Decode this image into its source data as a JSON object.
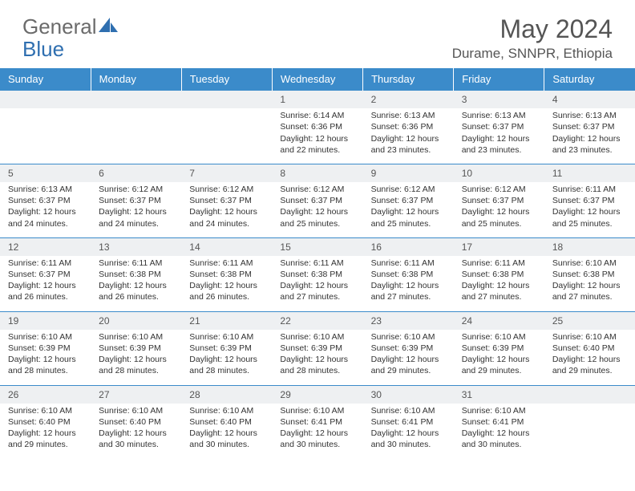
{
  "brand": {
    "part1": "General",
    "part2": "Blue"
  },
  "colors": {
    "header_bg": "#3b8bca",
    "header_text": "#ffffff",
    "daynum_bg": "#eef0f2",
    "border": "#3b8bca",
    "text": "#333333",
    "muted": "#555555",
    "logo_gray": "#6b6b6b",
    "logo_blue": "#2f6fb0"
  },
  "title": "May 2024",
  "location": "Durame, SNNPR, Ethiopia",
  "weekdays": [
    "Sunday",
    "Monday",
    "Tuesday",
    "Wednesday",
    "Thursday",
    "Friday",
    "Saturday"
  ],
  "weeks": [
    [
      {
        "n": "",
        "s": ""
      },
      {
        "n": "",
        "s": ""
      },
      {
        "n": "",
        "s": ""
      },
      {
        "n": "1",
        "s": "Sunrise: 6:14 AM\nSunset: 6:36 PM\nDaylight: 12 hours and 22 minutes."
      },
      {
        "n": "2",
        "s": "Sunrise: 6:13 AM\nSunset: 6:36 PM\nDaylight: 12 hours and 23 minutes."
      },
      {
        "n": "3",
        "s": "Sunrise: 6:13 AM\nSunset: 6:37 PM\nDaylight: 12 hours and 23 minutes."
      },
      {
        "n": "4",
        "s": "Sunrise: 6:13 AM\nSunset: 6:37 PM\nDaylight: 12 hours and 23 minutes."
      }
    ],
    [
      {
        "n": "5",
        "s": "Sunrise: 6:13 AM\nSunset: 6:37 PM\nDaylight: 12 hours and 24 minutes."
      },
      {
        "n": "6",
        "s": "Sunrise: 6:12 AM\nSunset: 6:37 PM\nDaylight: 12 hours and 24 minutes."
      },
      {
        "n": "7",
        "s": "Sunrise: 6:12 AM\nSunset: 6:37 PM\nDaylight: 12 hours and 24 minutes."
      },
      {
        "n": "8",
        "s": "Sunrise: 6:12 AM\nSunset: 6:37 PM\nDaylight: 12 hours and 25 minutes."
      },
      {
        "n": "9",
        "s": "Sunrise: 6:12 AM\nSunset: 6:37 PM\nDaylight: 12 hours and 25 minutes."
      },
      {
        "n": "10",
        "s": "Sunrise: 6:12 AM\nSunset: 6:37 PM\nDaylight: 12 hours and 25 minutes."
      },
      {
        "n": "11",
        "s": "Sunrise: 6:11 AM\nSunset: 6:37 PM\nDaylight: 12 hours and 25 minutes."
      }
    ],
    [
      {
        "n": "12",
        "s": "Sunrise: 6:11 AM\nSunset: 6:37 PM\nDaylight: 12 hours and 26 minutes."
      },
      {
        "n": "13",
        "s": "Sunrise: 6:11 AM\nSunset: 6:38 PM\nDaylight: 12 hours and 26 minutes."
      },
      {
        "n": "14",
        "s": "Sunrise: 6:11 AM\nSunset: 6:38 PM\nDaylight: 12 hours and 26 minutes."
      },
      {
        "n": "15",
        "s": "Sunrise: 6:11 AM\nSunset: 6:38 PM\nDaylight: 12 hours and 27 minutes."
      },
      {
        "n": "16",
        "s": "Sunrise: 6:11 AM\nSunset: 6:38 PM\nDaylight: 12 hours and 27 minutes."
      },
      {
        "n": "17",
        "s": "Sunrise: 6:11 AM\nSunset: 6:38 PM\nDaylight: 12 hours and 27 minutes."
      },
      {
        "n": "18",
        "s": "Sunrise: 6:10 AM\nSunset: 6:38 PM\nDaylight: 12 hours and 27 minutes."
      }
    ],
    [
      {
        "n": "19",
        "s": "Sunrise: 6:10 AM\nSunset: 6:39 PM\nDaylight: 12 hours and 28 minutes."
      },
      {
        "n": "20",
        "s": "Sunrise: 6:10 AM\nSunset: 6:39 PM\nDaylight: 12 hours and 28 minutes."
      },
      {
        "n": "21",
        "s": "Sunrise: 6:10 AM\nSunset: 6:39 PM\nDaylight: 12 hours and 28 minutes."
      },
      {
        "n": "22",
        "s": "Sunrise: 6:10 AM\nSunset: 6:39 PM\nDaylight: 12 hours and 28 minutes."
      },
      {
        "n": "23",
        "s": "Sunrise: 6:10 AM\nSunset: 6:39 PM\nDaylight: 12 hours and 29 minutes."
      },
      {
        "n": "24",
        "s": "Sunrise: 6:10 AM\nSunset: 6:39 PM\nDaylight: 12 hours and 29 minutes."
      },
      {
        "n": "25",
        "s": "Sunrise: 6:10 AM\nSunset: 6:40 PM\nDaylight: 12 hours and 29 minutes."
      }
    ],
    [
      {
        "n": "26",
        "s": "Sunrise: 6:10 AM\nSunset: 6:40 PM\nDaylight: 12 hours and 29 minutes."
      },
      {
        "n": "27",
        "s": "Sunrise: 6:10 AM\nSunset: 6:40 PM\nDaylight: 12 hours and 30 minutes."
      },
      {
        "n": "28",
        "s": "Sunrise: 6:10 AM\nSunset: 6:40 PM\nDaylight: 12 hours and 30 minutes."
      },
      {
        "n": "29",
        "s": "Sunrise: 6:10 AM\nSunset: 6:41 PM\nDaylight: 12 hours and 30 minutes."
      },
      {
        "n": "30",
        "s": "Sunrise: 6:10 AM\nSunset: 6:41 PM\nDaylight: 12 hours and 30 minutes."
      },
      {
        "n": "31",
        "s": "Sunrise: 6:10 AM\nSunset: 6:41 PM\nDaylight: 12 hours and 30 minutes."
      },
      {
        "n": "",
        "s": ""
      }
    ]
  ]
}
